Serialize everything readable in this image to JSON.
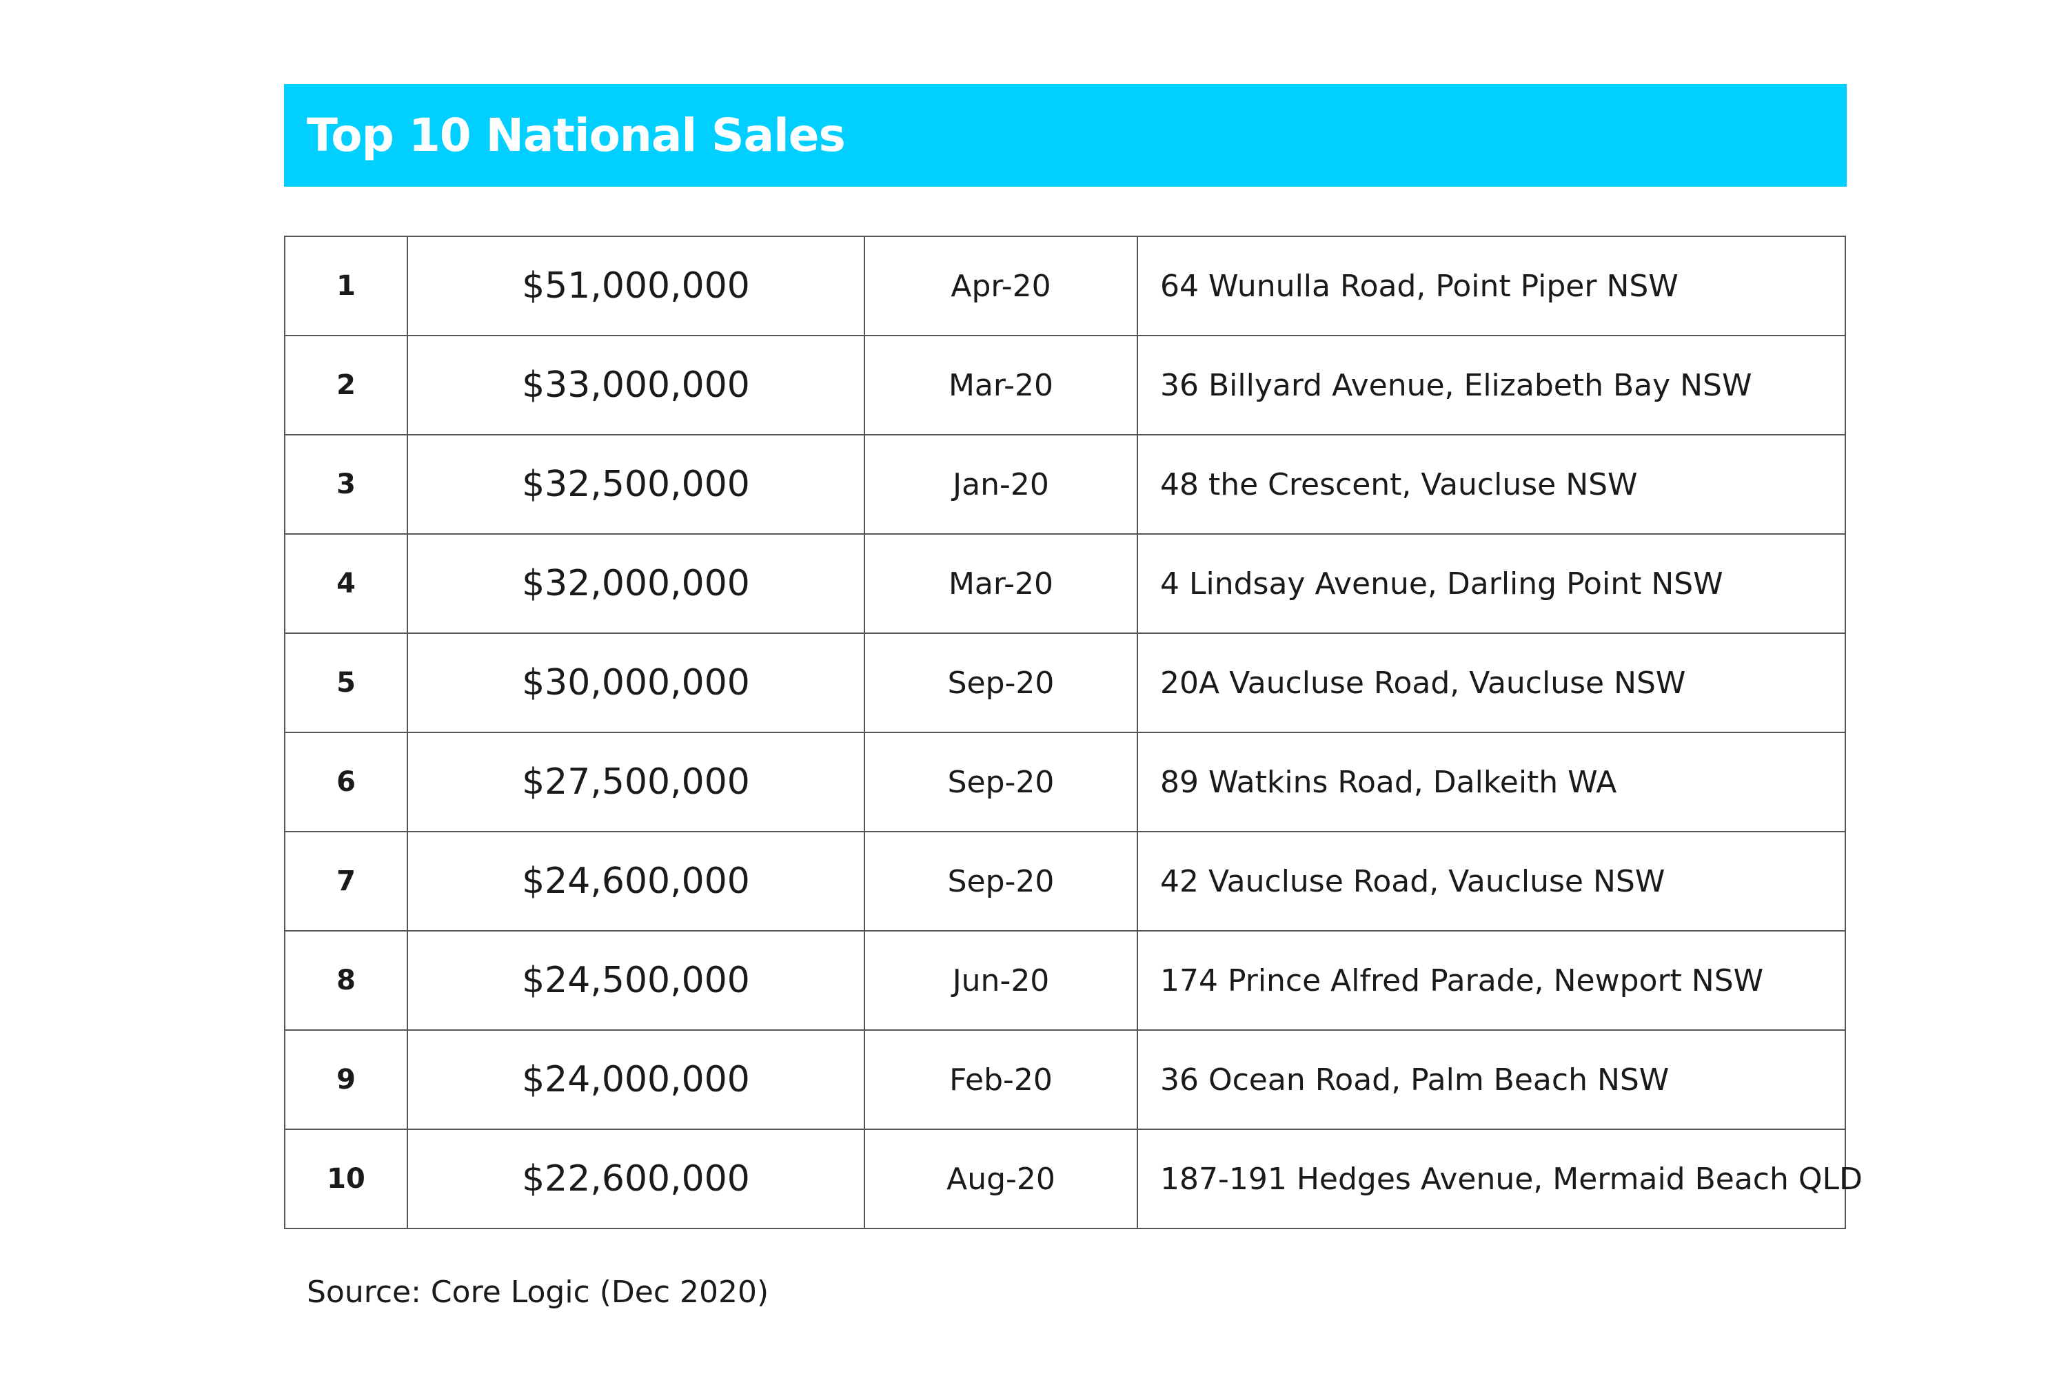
{
  "header": {
    "title": "Top 10 National Sales"
  },
  "table": {
    "rows": [
      [
        "1",
        "$51,000,000",
        "Apr-20",
        "64 Wunulla Road, Point Piper NSW"
      ],
      [
        "2",
        "$33,000,000",
        "Mar-20",
        "36 Billyard Avenue, Elizabeth Bay NSW"
      ],
      [
        "3",
        "$32,500,000",
        "Jan-20",
        "48 the Crescent, Vaucluse NSW"
      ],
      [
        "4",
        "$32,000,000",
        "Mar-20",
        "4 Lindsay Avenue, Darling Point NSW"
      ],
      [
        "5",
        "$30,000,000",
        "Sep-20",
        "20A Vaucluse Road, Vaucluse NSW"
      ],
      [
        "6",
        "$27,500,000",
        "Sep-20",
        "89 Watkins Road, Dalkeith WA"
      ],
      [
        "7",
        "$24,600,000",
        "Sep-20",
        "42 Vaucluse Road, Vaucluse NSW"
      ],
      [
        "8",
        "$24,500,000",
        "Jun-20",
        "174 Prince Alfred Parade, Newport NSW"
      ],
      [
        "9",
        "$24,000,000",
        "Feb-20",
        "36 Ocean Road, Palm Beach NSW"
      ],
      [
        "10",
        "$22,600,000",
        "Aug-20",
        "187-191 Hedges Avenue, Mermaid Beach QLD"
      ]
    ]
  },
  "source": "Source: Core Logic (Dec 2020)"
}
